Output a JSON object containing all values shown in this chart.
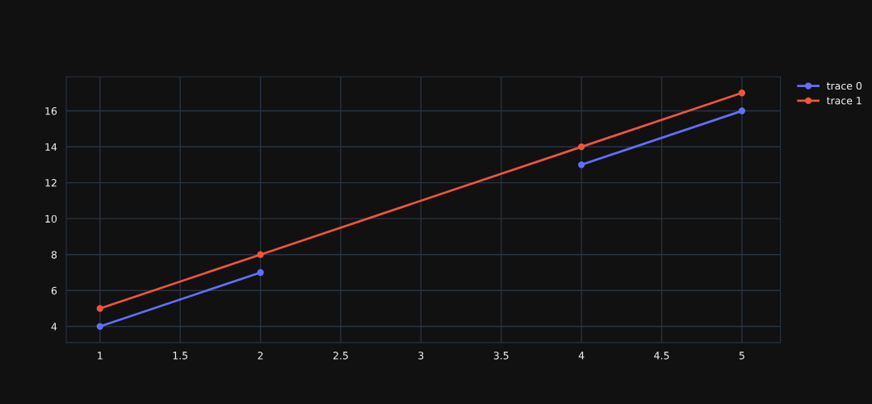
{
  "chart_data": {
    "type": "line",
    "marker": "circle",
    "line_style": "solid",
    "grid": true,
    "legend": "top right",
    "xlim": [
      0.79,
      5.24
    ],
    "xticks": [
      1,
      1.5,
      2,
      2.5,
      3,
      3.5,
      4,
      4.5,
      5
    ],
    "ylim": [
      3.1,
      17.9
    ],
    "yticks": [
      4,
      6,
      8,
      10,
      12,
      14,
      16
    ],
    "series": [
      {
        "name": "trace 0",
        "color": "#636efa",
        "x": [
          1,
          2,
          3,
          4,
          5
        ],
        "values": [
          4,
          7,
          null,
          13,
          16
        ]
      },
      {
        "name": "trace 1",
        "color": "#ef553b",
        "x": [
          1,
          2,
          4,
          5
        ],
        "values": [
          5,
          8,
          14,
          17
        ]
      }
    ]
  }
}
